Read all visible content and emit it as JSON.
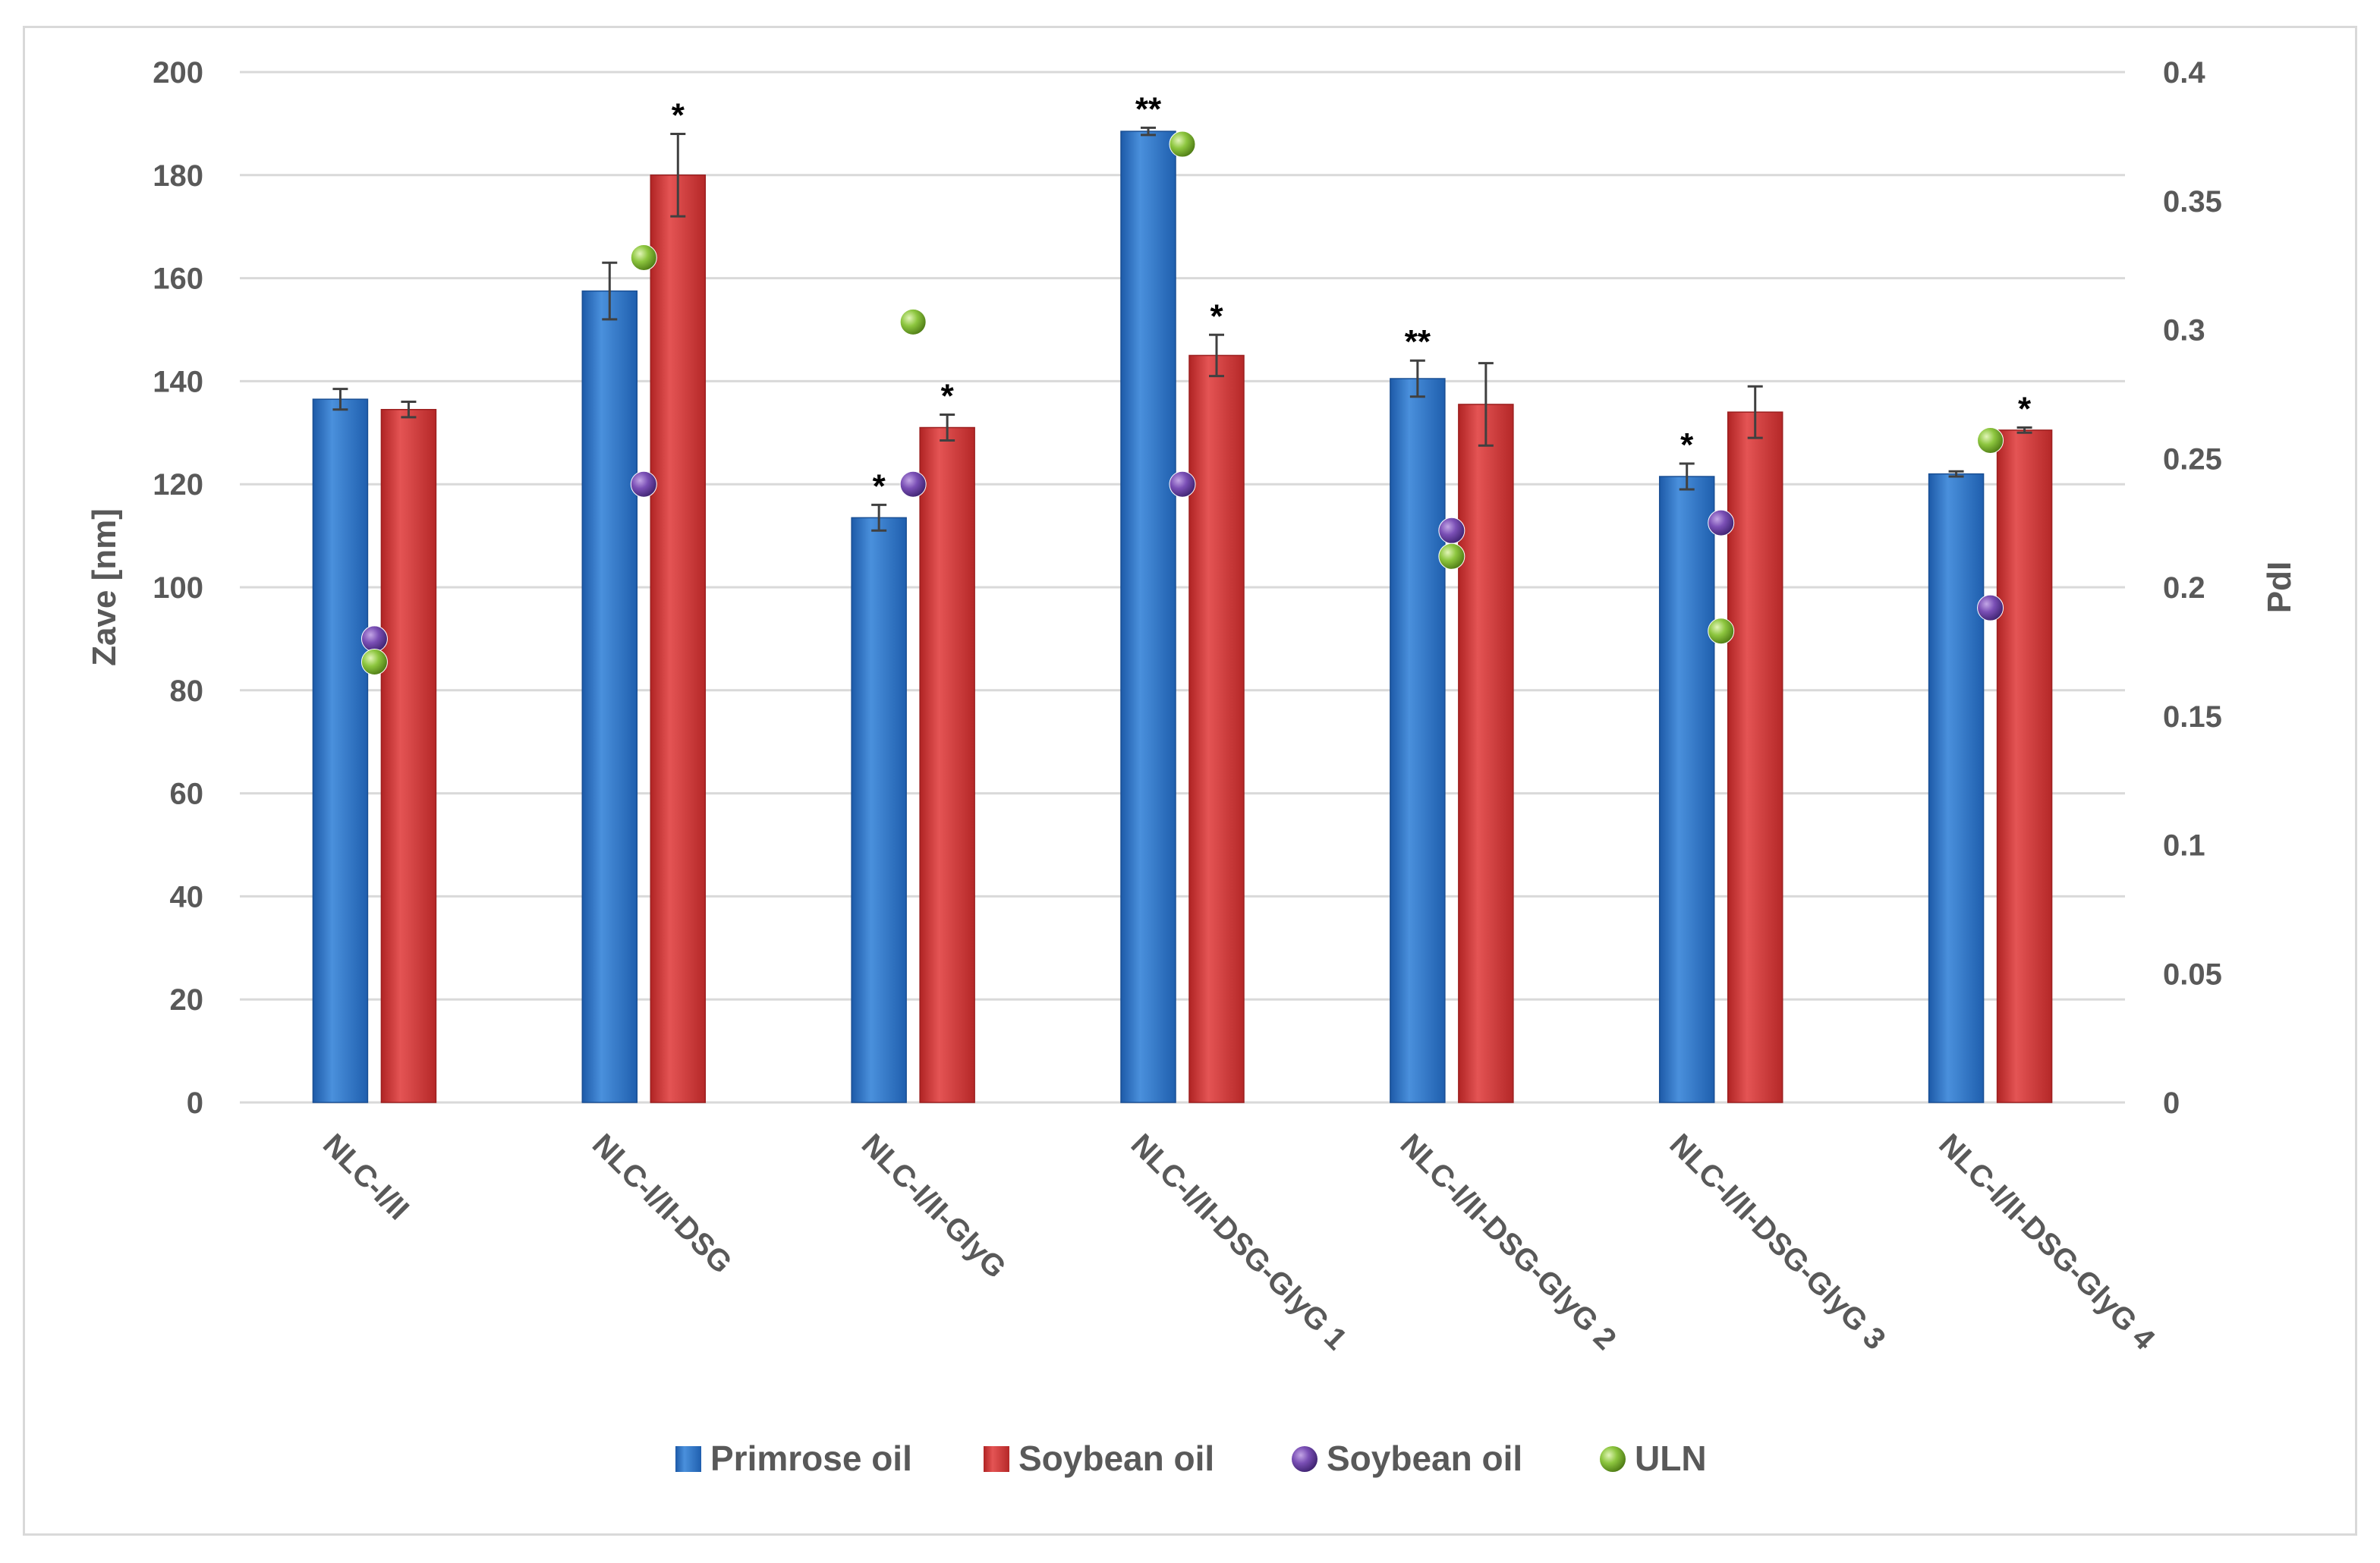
{
  "chart_data": {
    "type": "bar",
    "categories": [
      "NLC-I/II",
      "NLC-I/II-DSG",
      "NLC-I/II-GlyG",
      "NLC-I/II-DSG-GlyG 1",
      "NLC-I/II-DSG-GlyG 2",
      "NLC-I/II-DSG-GlyG 3",
      "NLC-I/II-DSG-GlyG 4"
    ],
    "series": [
      {
        "name": "Primrose oil",
        "kind": "bar",
        "axis": "left",
        "color": "#2e75c8",
        "values": [
          136.5,
          157.5,
          113.5,
          188.5,
          140.5,
          121.5,
          122
        ],
        "errors": [
          2,
          5.5,
          2.5,
          0.7,
          3.5,
          2.5,
          0.5
        ],
        "significance": [
          "",
          "",
          "*",
          "**",
          "**",
          "*",
          ""
        ]
      },
      {
        "name": "Soybean oil",
        "kind": "bar",
        "axis": "left",
        "color": "#d63c3c",
        "values": [
          134.5,
          180,
          131,
          145,
          135.5,
          134,
          130.5
        ],
        "errors": [
          1.5,
          8,
          2.5,
          4,
          8,
          5,
          0.5
        ],
        "significance": [
          "",
          "*",
          "*",
          "*",
          "",
          "",
          "*"
        ]
      },
      {
        "name": "Soybean oil",
        "kind": "point",
        "axis": "right",
        "color": "#7a4fb5",
        "values": [
          0.18,
          0.24,
          0.24,
          0.24,
          0.222,
          0.225,
          0.192
        ]
      },
      {
        "name": "ULN",
        "kind": "point",
        "axis": "right",
        "color": "#8dc63f",
        "values": [
          0.171,
          0.328,
          0.303,
          0.372,
          0.212,
          0.183,
          0.257
        ]
      }
    ],
    "ylabel": "Zave [nm]",
    "y2label": "PdI",
    "ylim": [
      0,
      200
    ],
    "y2lim": [
      0,
      0.4
    ],
    "yticks": [
      "0",
      "20",
      "40",
      "60",
      "80",
      "100",
      "120",
      "140",
      "160",
      "180",
      "200"
    ],
    "y2ticks": [
      "0",
      "0.05",
      "0.1",
      "0.15",
      "0.2",
      "0.25",
      "0.3",
      "0.35",
      "0.4"
    ],
    "grid": true,
    "legend_position": "bottom"
  }
}
